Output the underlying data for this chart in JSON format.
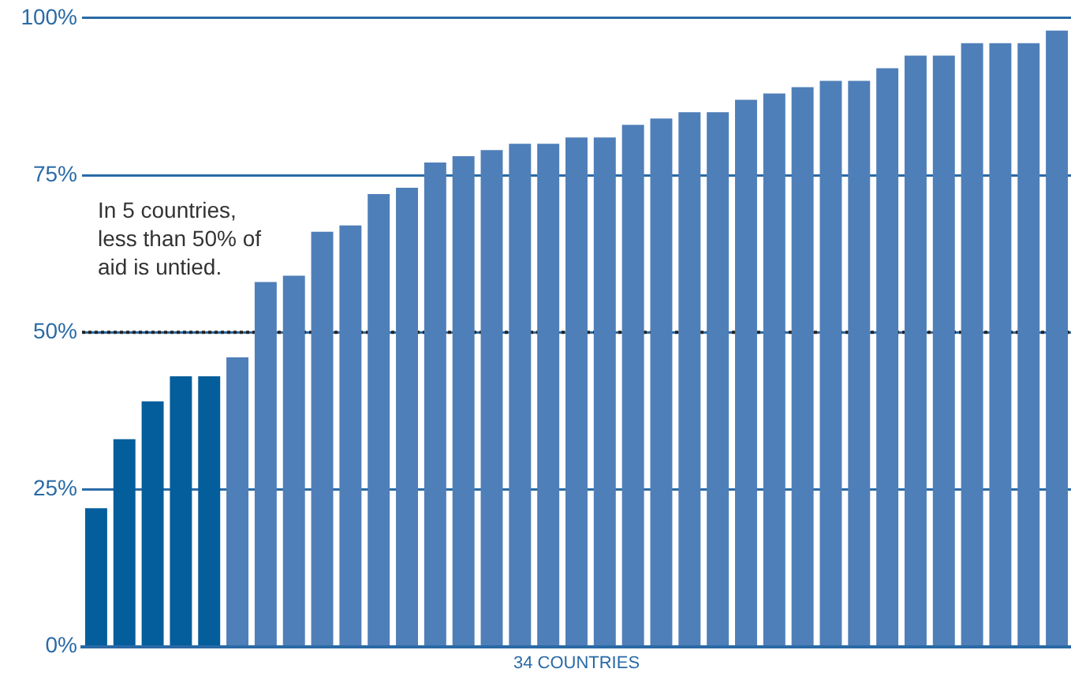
{
  "chart_data": {
    "type": "bar",
    "categories": [
      null,
      null,
      null,
      null,
      null,
      null,
      null,
      null,
      null,
      null,
      null,
      null,
      null,
      null,
      null,
      null,
      null,
      null,
      null,
      null,
      null,
      null,
      null,
      null,
      null,
      null,
      null,
      null,
      null,
      null,
      null,
      null,
      null,
      null,
      null
    ],
    "values": [
      22,
      33,
      39,
      43,
      43,
      46,
      58,
      59,
      66,
      67,
      72,
      73,
      77,
      78,
      79,
      80,
      80,
      81,
      81,
      83,
      84,
      85,
      85,
      87,
      88,
      89,
      90,
      90,
      92,
      94,
      94,
      96,
      96,
      96,
      98
    ],
    "colors": [
      "#035e9b",
      "#035e9b",
      "#035e9b",
      "#035e9b",
      "#035e9b",
      "#4f7fb8",
      "#4f7fb8",
      "#4f7fb8",
      "#4f7fb8",
      "#4f7fb8",
      "#4f7fb8",
      "#4f7fb8",
      "#4f7fb8",
      "#4f7fb8",
      "#4f7fb8",
      "#4f7fb8",
      "#4f7fb8",
      "#4f7fb8",
      "#4f7fb8",
      "#4f7fb8",
      "#4f7fb8",
      "#4f7fb8",
      "#4f7fb8",
      "#4f7fb8",
      "#4f7fb8",
      "#4f7fb8",
      "#4f7fb8",
      "#4f7fb8",
      "#4f7fb8",
      "#4f7fb8",
      "#4f7fb8",
      "#4f7fb8",
      "#4f7fb8",
      "#4f7fb8",
      "#4f7fb8"
    ],
    "xlabel": "34 COUNTRIES",
    "ylim": [
      0,
      100
    ],
    "yticks": [
      {
        "value": 0,
        "label": "0%"
      },
      {
        "value": 25,
        "label": "25%"
      },
      {
        "value": 50,
        "label": "50%"
      },
      {
        "value": 75,
        "label": "75%"
      },
      {
        "value": 100,
        "label": "100%"
      }
    ],
    "grid": "y",
    "ref_lines": [
      {
        "axis": "y",
        "value": 50,
        "color": "#222222",
        "line_style": "dotted"
      }
    ],
    "annotations": [
      "In 5 countries, less than 50% of aid is untied."
    ]
  }
}
